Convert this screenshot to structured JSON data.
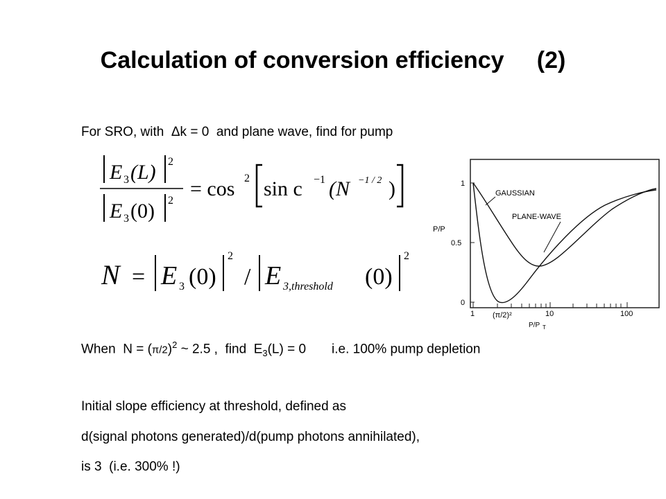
{
  "slide": {
    "title": "Calculation of conversion efficiency     (2)",
    "intro": "For SRO, with  Δk = 0  and plane wave, find for pump",
    "depletion": {
      "part1": "When  N = (",
      "pi_over_2": "π/2",
      "part2": ")",
      "exp": "2",
      "part3": " ~ 2.5 ,  find  E",
      "sub": "3",
      "part4": "(L) = 0       i.e. 100% pump depletion"
    },
    "slope_line1": "Initial slope efficiency at threshold, defined as",
    "slope_line2": "d(signal photons generated)/d(pump photons annihilated),",
    "slope_line3": "is 3  (i.e. 300% !)"
  },
  "equations": {
    "eq1": {
      "num_E": "E",
      "num_sub": "3",
      "num_arg": "(L)",
      "den_arg": "(0)",
      "power": "2",
      "rhs_cos": "= cos",
      "rhs_sinc": "sin c",
      "rhs_exp": "−1",
      "rhs_N": "(N",
      "rhs_nexp": "−1 / 2",
      "rhs_close": ")"
    },
    "eq2": {
      "lhs": "N",
      "eq": "=",
      "E": "E",
      "sub1": "3",
      "arg": "(0)",
      "power": "2",
      "slash": "/",
      "sub2": "3,threshold"
    }
  },
  "graph": {
    "ylabel": "P/P",
    "y_ticks": [
      "1",
      "0.5",
      "0"
    ],
    "x_ticks": [
      "1",
      "(π/2)²",
      "10",
      "100"
    ],
    "xlabel": "P/P",
    "xlabel_sub": "T",
    "label_gaussian": "GAUSSIAN",
    "label_plane": "PLANE-WAVE"
  }
}
